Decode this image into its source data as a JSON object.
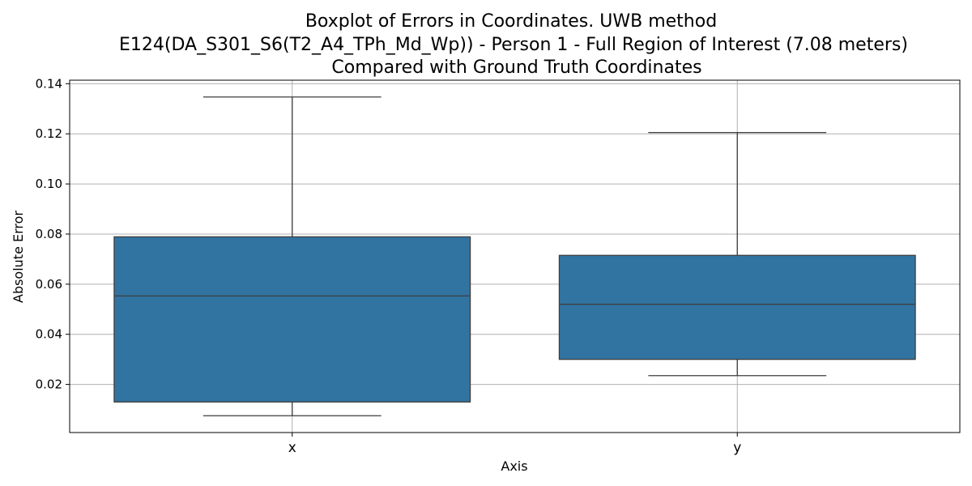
{
  "chart_data": {
    "type": "boxplot",
    "title_lines": [
      "Boxplot of Errors in Coordinates. UWB method",
      "E124(DA_S301_S6(T2_A4_TPh_Md_Wp)) - Person 1 - Full Region of Interest (7.08 meters)",
      "Compared with Ground Truth Coordinates"
    ],
    "xlabel": "Axis",
    "ylabel": "Absolute Error",
    "categories": [
      "x",
      "y"
    ],
    "boxes": [
      {
        "category": "x",
        "whisker_low": 0.0075,
        "q1": 0.013,
        "median": 0.0553,
        "q3": 0.0789,
        "whisker_high": 0.1347
      },
      {
        "category": "y",
        "whisker_low": 0.0235,
        "q1": 0.03,
        "median": 0.052,
        "q3": 0.0715,
        "whisker_high": 0.1205
      }
    ],
    "yticks": [
      "0.02",
      "0.04",
      "0.06",
      "0.08",
      "0.10",
      "0.12",
      "0.14"
    ],
    "ylim": [
      0.0008,
      0.1414
    ],
    "grid": true,
    "box_color": "#3274a1",
    "line_color": "#3d3d3d"
  }
}
